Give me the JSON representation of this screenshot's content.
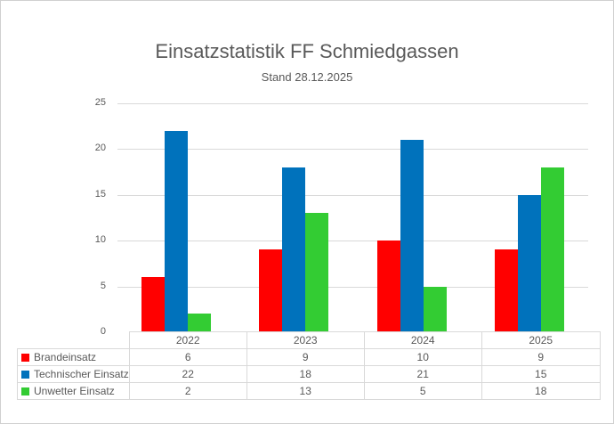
{
  "chart_data": {
    "type": "bar",
    "title": "Einsatzstatistik FF Schmiedgassen",
    "subtitle": "Stand 28.12.2025",
    "categories": [
      "2022",
      "2023",
      "2024",
      "2025"
    ],
    "series": [
      {
        "name": "Brandeinsatz",
        "color": "#FF0000",
        "values": [
          6,
          9,
          10,
          9
        ]
      },
      {
        "name": "Technischer Einsatz",
        "color": "#0072BC",
        "values": [
          22,
          18,
          21,
          15
        ]
      },
      {
        "name": "Unwetter Einsatz",
        "color": "#33CC33",
        "values": [
          2,
          13,
          5,
          18
        ]
      }
    ],
    "xlabel": "",
    "ylabel": "",
    "ylim": [
      0,
      25
    ],
    "yticks": [
      0,
      5,
      10,
      15,
      20,
      25
    ],
    "grid": true,
    "legend_position": "data-table-left",
    "data_table_shown": true
  },
  "colors": {
    "text": "#595959",
    "gridline": "#D9D9D9",
    "canvas_border": "#D0D0D0",
    "background": "#FFFFFF"
  }
}
